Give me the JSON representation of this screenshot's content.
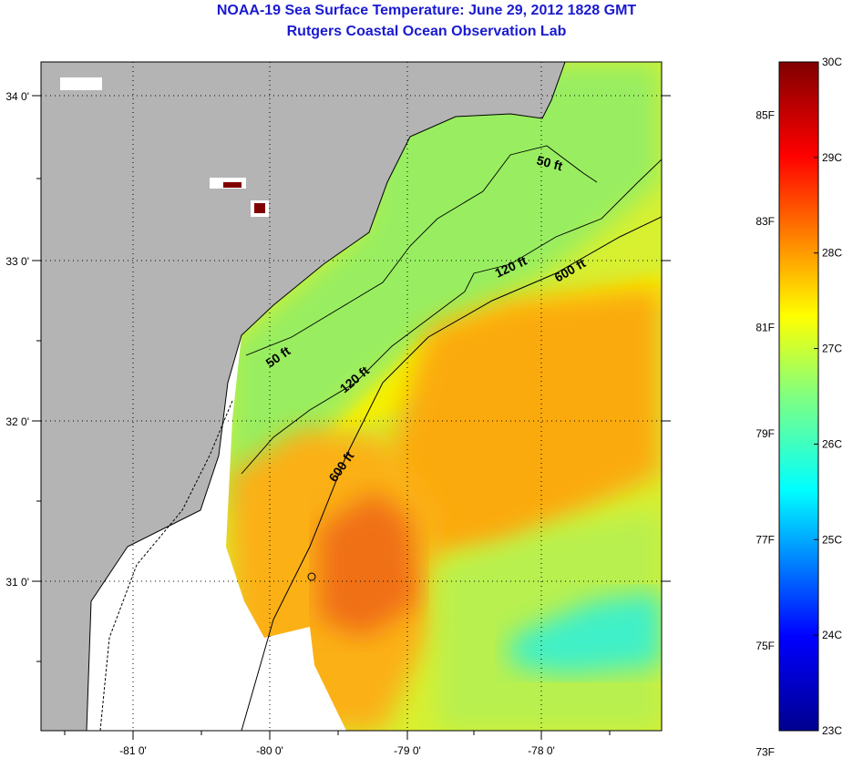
{
  "title": {
    "line1": "NOAA-19 Sea Surface Temperature:  June 29, 2012 1828 GMT",
    "line2": "Rutgers Coastal Ocean Observation Lab"
  },
  "axes": {
    "lon_labels": [
      "-81 0'",
      "-80 0'",
      "-79 0'",
      "-78 0'"
    ],
    "lat_labels": [
      "34 0'",
      "33 0'",
      "32 0'",
      "31 0'"
    ]
  },
  "contours": [
    {
      "label": "50 ft"
    },
    {
      "label": "120 ft"
    },
    {
      "label": "600 ft"
    },
    {
      "label": "50 ft"
    },
    {
      "label": "120 ft"
    },
    {
      "label": "600 ft"
    }
  ],
  "colorbar": {
    "fahrenheit_labels": [
      "85F",
      "83F",
      "81F",
      "79F",
      "77F",
      "75F",
      "73F"
    ],
    "celsius_labels": [
      "30C",
      "29C",
      "28C",
      "27C",
      "26C",
      "25C",
      "24C",
      "23C"
    ],
    "range_c": [
      23,
      30
    ]
  },
  "colors": {
    "title": "#1a1ad0",
    "land": "#b4b4b4",
    "no_data": "#ffffff"
  }
}
